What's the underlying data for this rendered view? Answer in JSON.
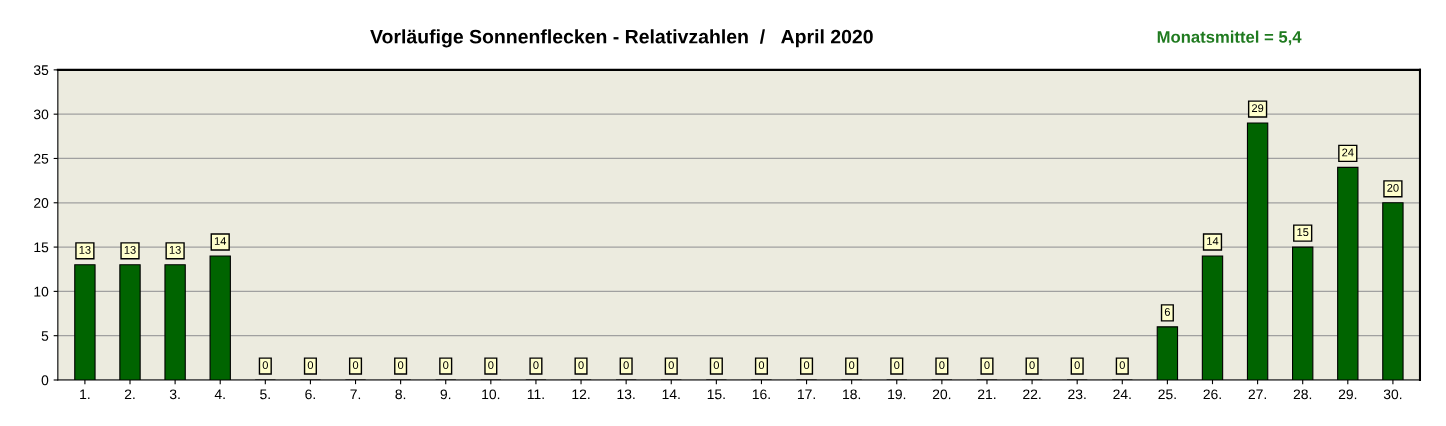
{
  "chart_data": {
    "type": "bar",
    "title": "Vorläufige Sonnenflecken - Relativzahlen  /   April 2020",
    "annotations": [
      "Monatsmittel = 5,4"
    ],
    "categories": [
      "1.",
      "2.",
      "3.",
      "4.",
      "5.",
      "6.",
      "7.",
      "8.",
      "9.",
      "10.",
      "11.",
      "12.",
      "13.",
      "14.",
      "15.",
      "16.",
      "17.",
      "18.",
      "19.",
      "20.",
      "21.",
      "22.",
      "23.",
      "24.",
      "25.",
      "26.",
      "27.",
      "28.",
      "29.",
      "30."
    ],
    "values": [
      13,
      13,
      13,
      14,
      0,
      0,
      0,
      0,
      0,
      0,
      0,
      0,
      0,
      0,
      0,
      0,
      0,
      0,
      0,
      0,
      0,
      0,
      0,
      0,
      6,
      14,
      29,
      15,
      24,
      20
    ],
    "color": "#006400",
    "ylim": [
      0,
      35
    ],
    "yticks": [
      0,
      5,
      10,
      15,
      20,
      25,
      30,
      35
    ],
    "grid": "y",
    "data_labels": true,
    "legend": false
  }
}
